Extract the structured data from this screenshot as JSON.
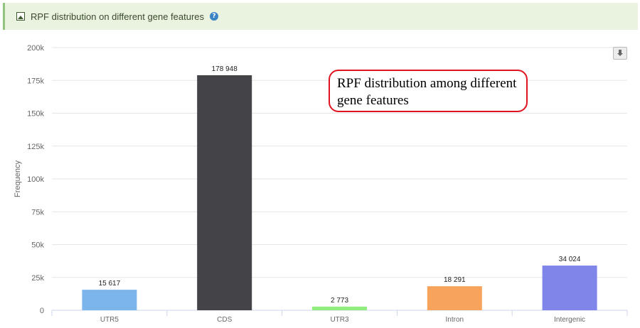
{
  "header": {
    "title": "RPF distribution on different gene features",
    "help_glyph": "?"
  },
  "annotation": "RPF distribution among different\ngene features",
  "chart_data": {
    "type": "bar",
    "title": "",
    "xlabel": "",
    "ylabel": "Frequency",
    "categories": [
      "UTR5",
      "CDS",
      "UTR3",
      "Intron",
      "Intergenic"
    ],
    "values": [
      15617,
      178948,
      2773,
      18291,
      34024
    ],
    "value_labels": [
      "15 617",
      "178 948",
      "2 773",
      "18 291",
      "34 024"
    ],
    "colors": [
      "#7cb5ec",
      "#434348",
      "#90ed7d",
      "#f7a35c",
      "#8085e9"
    ],
    "ylim": [
      0,
      200000
    ],
    "yticks": [
      0,
      25000,
      50000,
      75000,
      100000,
      125000,
      150000,
      175000,
      200000
    ],
    "ytick_labels": [
      "0",
      "25k",
      "50k",
      "75k",
      "100k",
      "125k",
      "150k",
      "175k",
      "200k"
    ],
    "grid": true,
    "legend": false
  }
}
